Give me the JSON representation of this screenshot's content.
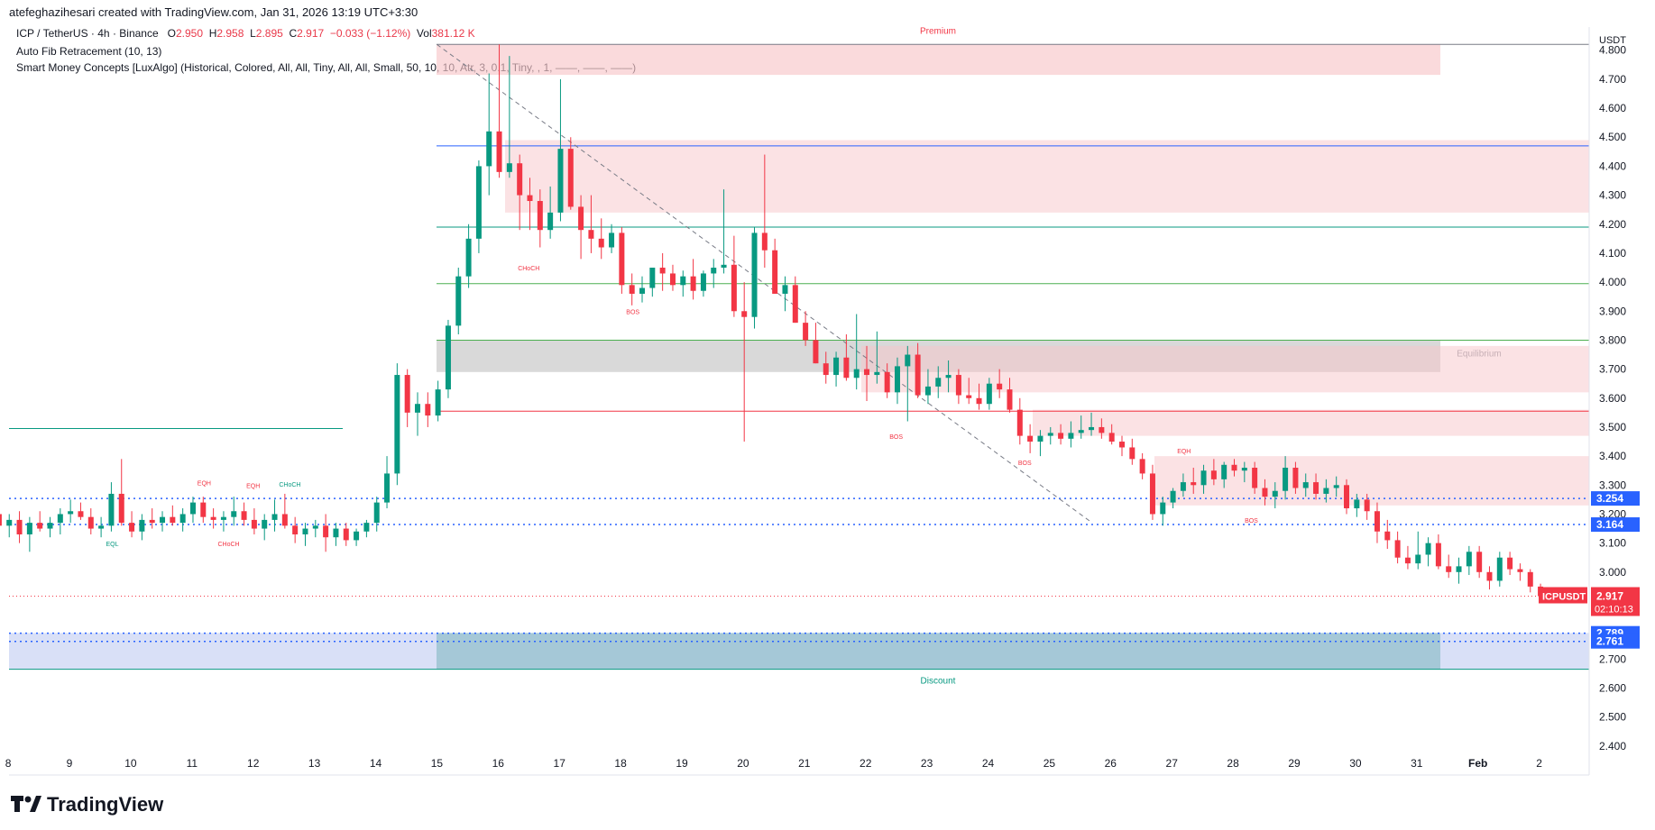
{
  "header": {
    "attribution": "atefeghazihesari created with TradingView.com, Jan 31, 2026 13:19 UTC+3:30"
  },
  "legend": {
    "symbol": "ICP / TetherUS · 4h · Binance",
    "o_label": "O",
    "o": "2.950",
    "h_label": "H",
    "h": "2.958",
    "l_label": "L",
    "l": "2.895",
    "c_label": "C",
    "c": "2.917",
    "change": "−0.033 (−1.12%)",
    "vol_label": "Vol",
    "vol": "381.12 K",
    "ind1": "Auto Fib Retracement (10, 13)",
    "ind2": "Smart Money Concepts [LuxAlgo] (Historical, Colored, All, All, Tiny, All, All, Small, 50, 10, 10, Atr, 3, 0.1, Tiny, , 1, ——, ——, ——)"
  },
  "brand": {
    "name": "TradingView"
  },
  "colors": {
    "up": "#089981",
    "down": "#f23645",
    "premium": "#f7c6ca",
    "discount": "#b9c7f0",
    "equilibrium": "#c9c9c9"
  },
  "chart_data": {
    "type": "candlestick",
    "currency": "USDT",
    "symbol_tag": "ICPUSDT",
    "last_price": "2.917",
    "countdown": "02:10:13",
    "ylim": [
      2.3,
      4.88
    ],
    "yticks": [
      "4.800",
      "4.700",
      "4.600",
      "4.500",
      "4.400",
      "4.300",
      "4.200",
      "4.100",
      "4.000",
      "3.900",
      "3.800",
      "3.700",
      "3.600",
      "3.500",
      "3.400",
      "3.300",
      "3.200",
      "3.100",
      "3.000",
      "2.700",
      "2.600",
      "2.500",
      "2.400"
    ],
    "xticks": [
      "8",
      "9",
      "10",
      "11",
      "12",
      "13",
      "14",
      "15",
      "16",
      "17",
      "18",
      "19",
      "20",
      "21",
      "22",
      "23",
      "24",
      "25",
      "26",
      "27",
      "28",
      "29",
      "30",
      "31",
      "Feb",
      "2"
    ],
    "price_labels": [
      {
        "value": "3.254",
        "y": 3.254
      },
      {
        "value": "3.164",
        "y": 3.164
      },
      {
        "value": "2.789",
        "y": 2.789
      },
      {
        "value": "2.761",
        "y": 2.761
      }
    ],
    "zones": [
      {
        "label": "Premium",
        "kind": "premium",
        "from": 4.82,
        "to": 4.715
      },
      {
        "label": "Equilibrium",
        "kind": "equilibrium",
        "from": 3.8,
        "to": 3.69
      },
      {
        "label": "Discount",
        "kind": "discount",
        "from": 2.79,
        "to": 2.665
      }
    ],
    "order_blocks": [
      {
        "from": 4.49,
        "to": 4.24
      },
      {
        "from": 3.78,
        "to": 3.62
      },
      {
        "from": 3.56,
        "to": 3.47
      },
      {
        "from": 3.4,
        "to": 3.23
      }
    ],
    "fib_levels": [
      {
        "y": 4.82,
        "color": "#787b86"
      },
      {
        "y": 4.47,
        "color": "#2962ff"
      },
      {
        "y": 4.19,
        "color": "#089981"
      },
      {
        "y": 3.995,
        "color": "#4caf50"
      },
      {
        "y": 3.8,
        "color": "#4caf50"
      },
      {
        "y": 3.555,
        "color": "#f23645"
      },
      {
        "y": 2.665,
        "color": "#089981"
      }
    ],
    "structure_labels": [
      {
        "text": "EQH",
        "day": 11.2,
        "y": 3.3,
        "color": "#f23645"
      },
      {
        "text": "EQH",
        "day": 12.0,
        "y": 3.29,
        "color": "#f23645"
      },
      {
        "text": "CHoCH",
        "day": 12.6,
        "y": 3.295,
        "color": "#089981"
      },
      {
        "text": "EQL",
        "day": 9.7,
        "y": 3.09,
        "color": "#089981"
      },
      {
        "text": "CHoCH",
        "day": 11.6,
        "y": 3.09,
        "color": "#f23645"
      },
      {
        "text": "CHoCH",
        "day": 16.5,
        "y": 4.04,
        "color": "#f23645"
      },
      {
        "text": "BOS",
        "day": 18.2,
        "y": 3.89,
        "color": "#f23645"
      },
      {
        "text": "BOS",
        "day": 22.5,
        "y": 3.46,
        "color": "#f23645"
      },
      {
        "text": "BOS",
        "day": 24.6,
        "y": 3.37,
        "color": "#f23645"
      },
      {
        "text": "EQH",
        "day": 27.2,
        "y": 3.41,
        "color": "#f23645"
      },
      {
        "text": "BOS",
        "day": 28.3,
        "y": 3.17,
        "color": "#f23645"
      }
    ],
    "candles": [
      [
        3.2,
        3.22,
        3.14,
        3.16
      ],
      [
        3.16,
        3.2,
        3.12,
        3.18
      ],
      [
        3.18,
        3.21,
        3.1,
        3.13
      ],
      [
        3.13,
        3.19,
        3.07,
        3.17
      ],
      [
        3.17,
        3.21,
        3.14,
        3.15
      ],
      [
        3.15,
        3.19,
        3.12,
        3.17
      ],
      [
        3.17,
        3.22,
        3.13,
        3.2
      ],
      [
        3.2,
        3.25,
        3.17,
        3.21
      ],
      [
        3.21,
        3.24,
        3.18,
        3.19
      ],
      [
        3.19,
        3.22,
        3.13,
        3.15
      ],
      [
        3.15,
        3.19,
        3.12,
        3.16
      ],
      [
        3.16,
        3.31,
        3.14,
        3.27
      ],
      [
        3.27,
        3.39,
        3.16,
        3.17
      ],
      [
        3.17,
        3.21,
        3.12,
        3.14
      ],
      [
        3.14,
        3.2,
        3.11,
        3.18
      ],
      [
        3.18,
        3.22,
        3.15,
        3.17
      ],
      [
        3.17,
        3.21,
        3.14,
        3.19
      ],
      [
        3.19,
        3.23,
        3.16,
        3.17
      ],
      [
        3.17,
        3.22,
        3.14,
        3.2
      ],
      [
        3.2,
        3.26,
        3.17,
        3.24
      ],
      [
        3.24,
        3.26,
        3.17,
        3.19
      ],
      [
        3.19,
        3.22,
        3.15,
        3.18
      ],
      [
        3.18,
        3.21,
        3.14,
        3.19
      ],
      [
        3.19,
        3.26,
        3.16,
        3.21
      ],
      [
        3.21,
        3.24,
        3.16,
        3.18
      ],
      [
        3.18,
        3.22,
        3.13,
        3.15
      ],
      [
        3.15,
        3.2,
        3.11,
        3.18
      ],
      [
        3.18,
        3.25,
        3.14,
        3.2
      ],
      [
        3.2,
        3.27,
        3.15,
        3.16
      ],
      [
        3.16,
        3.19,
        3.1,
        3.13
      ],
      [
        3.13,
        3.17,
        3.09,
        3.15
      ],
      [
        3.15,
        3.18,
        3.12,
        3.16
      ],
      [
        3.16,
        3.2,
        3.07,
        3.12
      ],
      [
        3.12,
        3.17,
        3.09,
        3.15
      ],
      [
        3.15,
        3.17,
        3.09,
        3.11
      ],
      [
        3.11,
        3.15,
        3.09,
        3.14
      ],
      [
        3.14,
        3.18,
        3.12,
        3.17
      ],
      [
        3.17,
        3.26,
        3.14,
        3.24
      ],
      [
        3.24,
        3.4,
        3.22,
        3.34
      ],
      [
        3.34,
        3.72,
        3.3,
        3.68
      ],
      [
        3.68,
        3.7,
        3.5,
        3.55
      ],
      [
        3.55,
        3.62,
        3.47,
        3.58
      ],
      [
        3.58,
        3.62,
        3.5,
        3.54
      ],
      [
        3.54,
        3.66,
        3.52,
        3.63
      ],
      [
        3.63,
        3.87,
        3.6,
        3.85
      ],
      [
        3.85,
        4.05,
        3.82,
        4.02
      ],
      [
        4.02,
        4.2,
        3.98,
        4.15
      ],
      [
        4.15,
        4.42,
        4.1,
        4.4
      ],
      [
        4.4,
        4.72,
        4.3,
        4.52
      ],
      [
        4.52,
        4.82,
        4.36,
        4.38
      ],
      [
        4.38,
        4.78,
        4.36,
        4.41
      ],
      [
        4.41,
        4.44,
        4.18,
        4.3
      ],
      [
        4.3,
        4.36,
        4.18,
        4.28
      ],
      [
        4.28,
        4.32,
        4.12,
        4.18
      ],
      [
        4.18,
        4.33,
        4.15,
        4.24
      ],
      [
        4.24,
        4.7,
        4.21,
        4.46
      ],
      [
        4.46,
        4.5,
        4.25,
        4.26
      ],
      [
        4.26,
        4.3,
        4.08,
        4.18
      ],
      [
        4.18,
        4.3,
        4.1,
        4.15
      ],
      [
        4.15,
        4.22,
        4.08,
        4.12
      ],
      [
        4.12,
        4.2,
        4.1,
        4.17
      ],
      [
        4.17,
        4.19,
        3.96,
        3.99
      ],
      [
        3.99,
        4.03,
        3.92,
        3.96
      ],
      [
        3.96,
        4.02,
        3.93,
        3.98
      ],
      [
        3.98,
        4.05,
        3.95,
        4.05
      ],
      [
        4.05,
        4.1,
        3.97,
        4.03
      ],
      [
        4.03,
        4.06,
        3.97,
        3.99
      ],
      [
        3.99,
        4.04,
        3.95,
        4.02
      ],
      [
        4.02,
        4.08,
        3.94,
        3.97
      ],
      [
        3.97,
        4.04,
        3.95,
        4.03
      ],
      [
        4.03,
        4.08,
        3.98,
        4.05
      ],
      [
        4.05,
        4.32,
        4.03,
        4.06
      ],
      [
        4.06,
        4.16,
        3.88,
        3.9
      ],
      [
        3.9,
        4.0,
        3.45,
        3.88
      ],
      [
        3.88,
        4.19,
        3.84,
        4.17
      ],
      [
        4.17,
        4.44,
        4.05,
        4.11
      ],
      [
        4.11,
        4.15,
        3.96,
        3.96
      ],
      [
        3.96,
        4.02,
        3.9,
        3.99
      ],
      [
        3.99,
        4.02,
        3.86,
        3.86
      ],
      [
        3.86,
        3.9,
        3.78,
        3.8
      ],
      [
        3.8,
        3.86,
        3.72,
        3.72
      ],
      [
        3.72,
        3.76,
        3.65,
        3.68
      ],
      [
        3.68,
        3.76,
        3.64,
        3.74
      ],
      [
        3.74,
        3.82,
        3.66,
        3.67
      ],
      [
        3.67,
        3.89,
        3.63,
        3.7
      ],
      [
        3.7,
        3.78,
        3.59,
        3.68
      ],
      [
        3.68,
        3.83,
        3.65,
        3.69
      ],
      [
        3.69,
        3.72,
        3.6,
        3.62
      ],
      [
        3.62,
        3.74,
        3.58,
        3.71
      ],
      [
        3.71,
        3.78,
        3.52,
        3.75
      ],
      [
        3.75,
        3.79,
        3.6,
        3.61
      ],
      [
        3.61,
        3.7,
        3.58,
        3.64
      ],
      [
        3.64,
        3.71,
        3.6,
        3.67
      ],
      [
        3.67,
        3.73,
        3.62,
        3.68
      ],
      [
        3.68,
        3.7,
        3.58,
        3.61
      ],
      [
        3.61,
        3.67,
        3.58,
        3.6
      ],
      [
        3.6,
        3.65,
        3.56,
        3.58
      ],
      [
        3.58,
        3.67,
        3.56,
        3.65
      ],
      [
        3.65,
        3.7,
        3.6,
        3.63
      ],
      [
        3.63,
        3.67,
        3.55,
        3.56
      ],
      [
        3.56,
        3.6,
        3.44,
        3.47
      ],
      [
        3.47,
        3.51,
        3.41,
        3.45
      ],
      [
        3.45,
        3.49,
        3.4,
        3.47
      ],
      [
        3.47,
        3.5,
        3.44,
        3.48
      ],
      [
        3.48,
        3.51,
        3.44,
        3.46
      ],
      [
        3.46,
        3.52,
        3.43,
        3.48
      ],
      [
        3.48,
        3.54,
        3.46,
        3.49
      ],
      [
        3.49,
        3.55,
        3.47,
        3.5
      ],
      [
        3.5,
        3.53,
        3.46,
        3.48
      ],
      [
        3.48,
        3.51,
        3.44,
        3.45
      ],
      [
        3.45,
        3.47,
        3.4,
        3.43
      ],
      [
        3.43,
        3.46,
        3.37,
        3.39
      ],
      [
        3.39,
        3.41,
        3.32,
        3.34
      ],
      [
        3.34,
        3.37,
        3.18,
        3.2
      ],
      [
        3.2,
        3.26,
        3.16,
        3.24
      ],
      [
        3.24,
        3.29,
        3.22,
        3.28
      ],
      [
        3.28,
        3.34,
        3.26,
        3.31
      ],
      [
        3.31,
        3.36,
        3.27,
        3.3
      ],
      [
        3.3,
        3.37,
        3.27,
        3.35
      ],
      [
        3.35,
        3.39,
        3.3,
        3.32
      ],
      [
        3.32,
        3.38,
        3.29,
        3.37
      ],
      [
        3.37,
        3.39,
        3.33,
        3.35
      ],
      [
        3.35,
        3.38,
        3.31,
        3.36
      ],
      [
        3.36,
        3.38,
        3.27,
        3.29
      ],
      [
        3.29,
        3.32,
        3.23,
        3.26
      ],
      [
        3.26,
        3.31,
        3.22,
        3.28
      ],
      [
        3.28,
        3.4,
        3.25,
        3.36
      ],
      [
        3.36,
        3.38,
        3.27,
        3.29
      ],
      [
        3.29,
        3.34,
        3.26,
        3.31
      ],
      [
        3.31,
        3.34,
        3.25,
        3.27
      ],
      [
        3.27,
        3.32,
        3.24,
        3.29
      ],
      [
        3.29,
        3.33,
        3.26,
        3.3
      ],
      [
        3.3,
        3.32,
        3.2,
        3.22
      ],
      [
        3.22,
        3.27,
        3.19,
        3.25
      ],
      [
        3.25,
        3.27,
        3.18,
        3.21
      ],
      [
        3.21,
        3.24,
        3.1,
        3.14
      ],
      [
        3.14,
        3.18,
        3.08,
        3.11
      ],
      [
        3.11,
        3.14,
        3.03,
        3.05
      ],
      [
        3.05,
        3.09,
        3.01,
        3.03
      ],
      [
        3.03,
        3.14,
        3.01,
        3.06
      ],
      [
        3.06,
        3.12,
        3.02,
        3.1
      ],
      [
        3.1,
        3.13,
        3.01,
        3.02
      ],
      [
        3.02,
        3.06,
        2.98,
        3.0
      ],
      [
        3.0,
        3.05,
        2.96,
        3.02
      ],
      [
        3.02,
        3.09,
        2.99,
        3.07
      ],
      [
        3.07,
        3.09,
        2.98,
        3.0
      ],
      [
        3.0,
        3.02,
        2.94,
        2.97
      ],
      [
        2.97,
        3.07,
        2.95,
        3.05
      ],
      [
        3.05,
        3.07,
        2.99,
        3.01
      ],
      [
        3.01,
        3.03,
        2.97,
        3.0
      ],
      [
        3.0,
        3.01,
        2.93,
        2.95
      ],
      [
        2.95,
        2.96,
        2.9,
        2.917
      ]
    ],
    "candle_start_day": 7.85,
    "candle_step_day": 0.1667
  }
}
